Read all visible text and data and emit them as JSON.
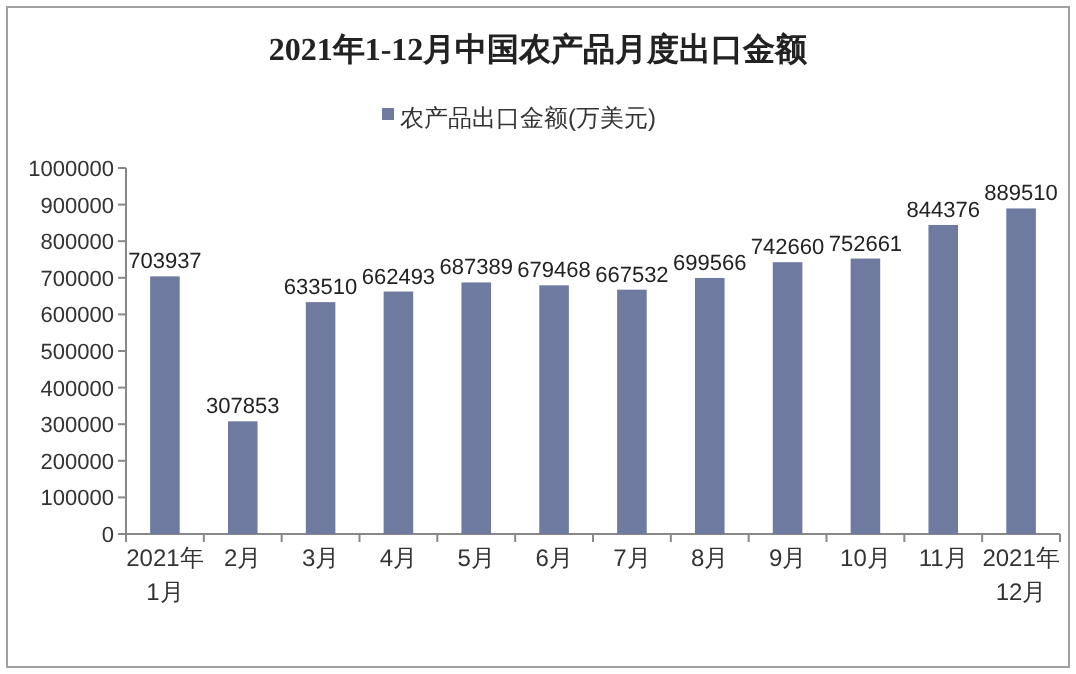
{
  "chart_data": {
    "type": "bar",
    "title": "2021年1-12月中国农产品月度出口金额",
    "categories": [
      "2021年1月",
      "2月",
      "3月",
      "4月",
      "5月",
      "6月",
      "7月",
      "8月",
      "9月",
      "10月",
      "11月",
      "2021年12月"
    ],
    "series": [
      {
        "name": "农产品出口金额(万美元)",
        "color": "#6e7aa0",
        "values": [
          703937,
          307853,
          633510,
          662493,
          687389,
          679468,
          667532,
          699566,
          742660,
          752661,
          844376,
          889510
        ]
      }
    ],
    "ylim": [
      0,
      1000000
    ],
    "yticks": [
      0,
      100000,
      200000,
      300000,
      400000,
      500000,
      600000,
      700000,
      800000,
      900000,
      1000000
    ],
    "data_labels": true,
    "legend": "top",
    "grid": false
  }
}
